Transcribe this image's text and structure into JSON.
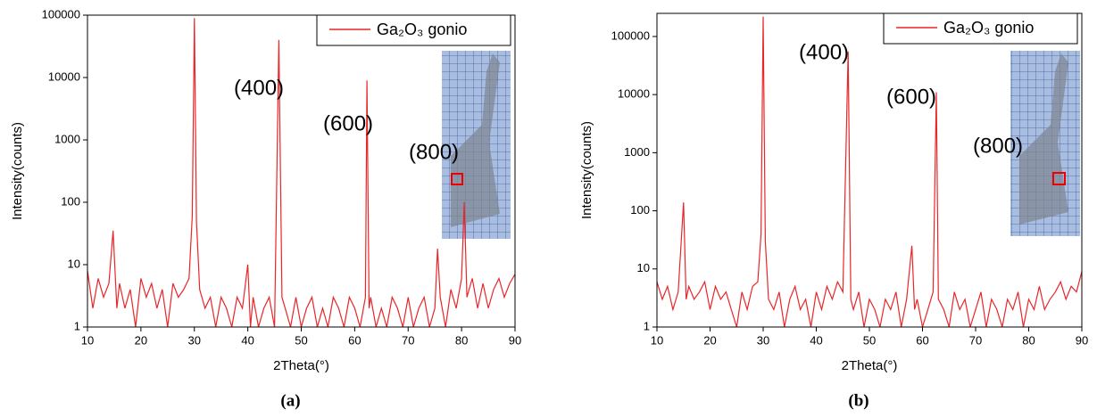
{
  "chart_data": [
    {
      "type": "line",
      "caption": "(a)",
      "x_label": "2Theta(°)",
      "y_label": "Intensity(counts)",
      "yscale": "log",
      "legend": "upper right",
      "annotations": [
        "(400)",
        "(600)",
        "(800)"
      ],
      "xlim": [
        10,
        90
      ],
      "xticks": [
        10,
        20,
        30,
        40,
        50,
        60,
        70,
        80,
        90
      ],
      "ylim": [
        1,
        100000
      ],
      "yticks": [
        1,
        10,
        100,
        1000,
        10000,
        100000
      ],
      "x": [
        10,
        11,
        12,
        13,
        14,
        14.8,
        15.5,
        16,
        17,
        18,
        19,
        20,
        21,
        22,
        23,
        24,
        25,
        26,
        27,
        28,
        29,
        29.6,
        30,
        30.4,
        31,
        32,
        33,
        34,
        35,
        36,
        37,
        38,
        39,
        40,
        40.5,
        41,
        42,
        43,
        44,
        45,
        45.8,
        46.4,
        47,
        48,
        49,
        50,
        51,
        52,
        53,
        54,
        55,
        56,
        57,
        58,
        59,
        60,
        61,
        62,
        62.3,
        62.7,
        63,
        64,
        65,
        66,
        67,
        68,
        69,
        70,
        71,
        72,
        73,
        74,
        75,
        75.5,
        76,
        77,
        78,
        79,
        80,
        80.5,
        81,
        82,
        83,
        84,
        85,
        86,
        87,
        88,
        89,
        90
      ],
      "series": [
        {
          "name": "Ga₂O₃ gonio",
          "color": "#e8262a",
          "values": [
            8,
            2,
            6,
            3,
            5,
            35,
            2,
            5,
            2,
            4,
            1,
            6,
            3,
            5,
            2,
            4,
            1,
            5,
            3,
            4,
            6,
            60,
            90000,
            50,
            4,
            2,
            3,
            1,
            3,
            2,
            1,
            3,
            2,
            10,
            1,
            3,
            1,
            2,
            3,
            1,
            40000,
            3,
            2,
            1,
            3,
            1,
            2,
            3,
            1,
            2,
            1,
            3,
            2,
            1,
            3,
            2,
            1,
            3,
            9000,
            2,
            3,
            1,
            2,
            1,
            3,
            2,
            1,
            3,
            1,
            2,
            3,
            1,
            2,
            18,
            3,
            1,
            4,
            2,
            6,
            100,
            3,
            6,
            2,
            5,
            2,
            4,
            6,
            3,
            5,
            7
          ]
        }
      ]
    },
    {
      "type": "line",
      "caption": "(b)",
      "x_label": "2Theta(°)",
      "y_label": "Intensity(counts)",
      "yscale": "log",
      "legend": "upper right",
      "annotations": [
        "(400)",
        "(600)",
        "(800)"
      ],
      "xlim": [
        10,
        90
      ],
      "xticks": [
        10,
        20,
        30,
        40,
        50,
        60,
        70,
        80,
        90
      ],
      "ylim": [
        1,
        250000
      ],
      "yticks": [
        1,
        10,
        100,
        1000,
        10000,
        100000
      ],
      "x": [
        10,
        11,
        12,
        13,
        14,
        15,
        15.5,
        16,
        17,
        18,
        19,
        20,
        21,
        22,
        23,
        24,
        25,
        26,
        27,
        28,
        29,
        29.6,
        30,
        30.4,
        31,
        32,
        33,
        34,
        35,
        36,
        37,
        38,
        39,
        40,
        41,
        42,
        43,
        44,
        45,
        46,
        46.5,
        47,
        48,
        49,
        50,
        51,
        52,
        53,
        54,
        55,
        56,
        57,
        58,
        58.5,
        59,
        60,
        61,
        62,
        62.6,
        63,
        64,
        65,
        66,
        67,
        68,
        69,
        70,
        71,
        72,
        73,
        74,
        75,
        76,
        77,
        78,
        79,
        80,
        81,
        82,
        83,
        84,
        85,
        86,
        87,
        88,
        89,
        90
      ],
      "series": [
        {
          "name": "Ga₂O₃ gonio",
          "color": "#e8262a",
          "values": [
            6,
            3,
            5,
            2,
            4,
            140,
            3,
            5,
            3,
            4,
            6,
            2,
            5,
            3,
            4,
            2,
            1,
            4,
            2,
            5,
            6,
            40,
            220000,
            30,
            3,
            2,
            4,
            1,
            3,
            5,
            2,
            3,
            1,
            4,
            2,
            5,
            3,
            6,
            4,
            55000,
            3,
            2,
            4,
            1,
            3,
            2,
            1,
            3,
            2,
            4,
            1,
            3,
            25,
            2,
            3,
            1,
            2,
            4,
            11000,
            3,
            2,
            1,
            4,
            2,
            3,
            1,
            2,
            4,
            1,
            3,
            2,
            1,
            3,
            2,
            4,
            1,
            3,
            2,
            5,
            2,
            3,
            4,
            6,
            3,
            5,
            4,
            9
          ]
        }
      ]
    }
  ]
}
